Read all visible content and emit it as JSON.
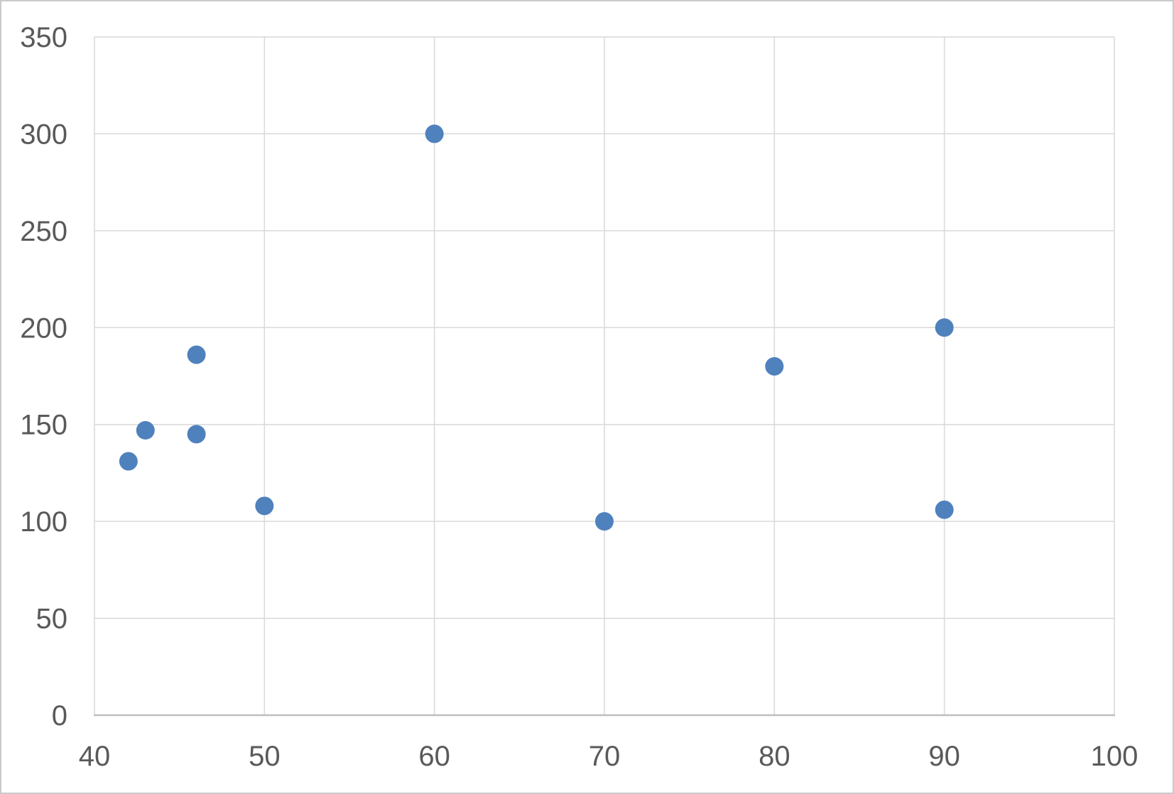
{
  "chart_data": {
    "type": "scatter",
    "title": "",
    "xlabel": "",
    "ylabel": "",
    "xlim": [
      40,
      100
    ],
    "ylim": [
      0,
      350
    ],
    "x_ticks": [
      "40",
      "50",
      "60",
      "70",
      "80",
      "90",
      "100"
    ],
    "y_ticks": [
      "0",
      "50",
      "100",
      "150",
      "200",
      "250",
      "300",
      "350"
    ],
    "grid": "both",
    "legend_position": "none",
    "series": [
      {
        "marker": "circle",
        "color": "#4F81BD",
        "points": [
          {
            "x": 42,
            "y": 131
          },
          {
            "x": 43,
            "y": 147
          },
          {
            "x": 46,
            "y": 186
          },
          {
            "x": 46,
            "y": 145
          },
          {
            "x": 50,
            "y": 108
          },
          {
            "x": 60,
            "y": 300
          },
          {
            "x": 70,
            "y": 100
          },
          {
            "x": 80,
            "y": 180
          },
          {
            "x": 90,
            "y": 200
          },
          {
            "x": 90,
            "y": 106
          }
        ]
      }
    ]
  },
  "colors": {
    "marker": "#4F81BD",
    "gridline": "#D9D9D9",
    "axis_line": "#BFBFBF",
    "tick_label": "#595959",
    "frame_border": "#CBC9C9",
    "background": "#FFFFFF"
  }
}
